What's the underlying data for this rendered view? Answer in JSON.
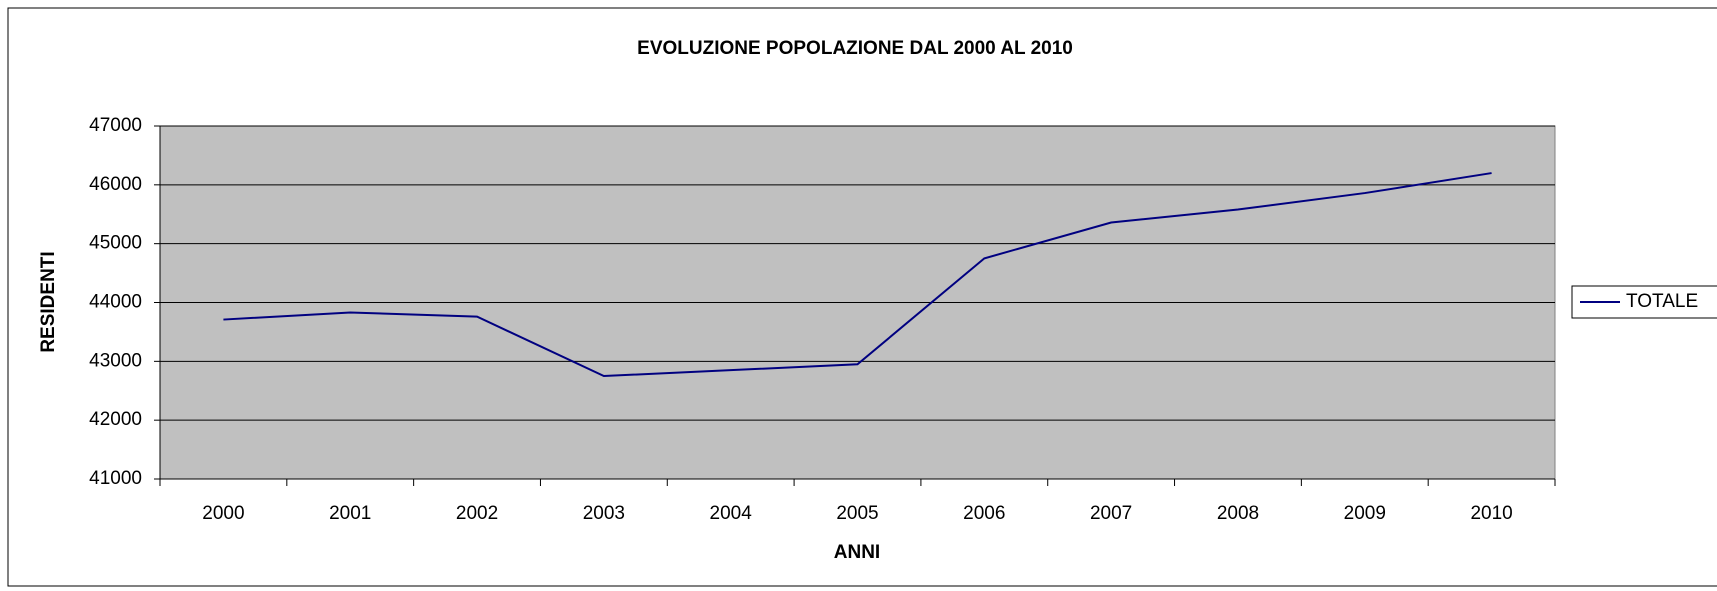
{
  "chart_data": {
    "type": "line",
    "title": "EVOLUZIONE POPOLAZIONE DAL 2000 AL 2010",
    "x_label": "ANNI",
    "y_label": "RESIDENTI",
    "categories": [
      "2000",
      "2001",
      "2002",
      "2003",
      "2004",
      "2005",
      "2006",
      "2007",
      "2008",
      "2009",
      "2010"
    ],
    "series": [
      {
        "name": "TOTALE",
        "color": "#000080",
        "values": [
          43710,
          43830,
          43760,
          42750,
          42850,
          42950,
          44750,
          45360,
          45580,
          45860,
          46200
        ]
      }
    ],
    "ylim": [
      41000,
      47000
    ],
    "yticks": [
      41000,
      42000,
      43000,
      44000,
      45000,
      46000,
      47000
    ],
    "grid": true,
    "legend": "right"
  }
}
